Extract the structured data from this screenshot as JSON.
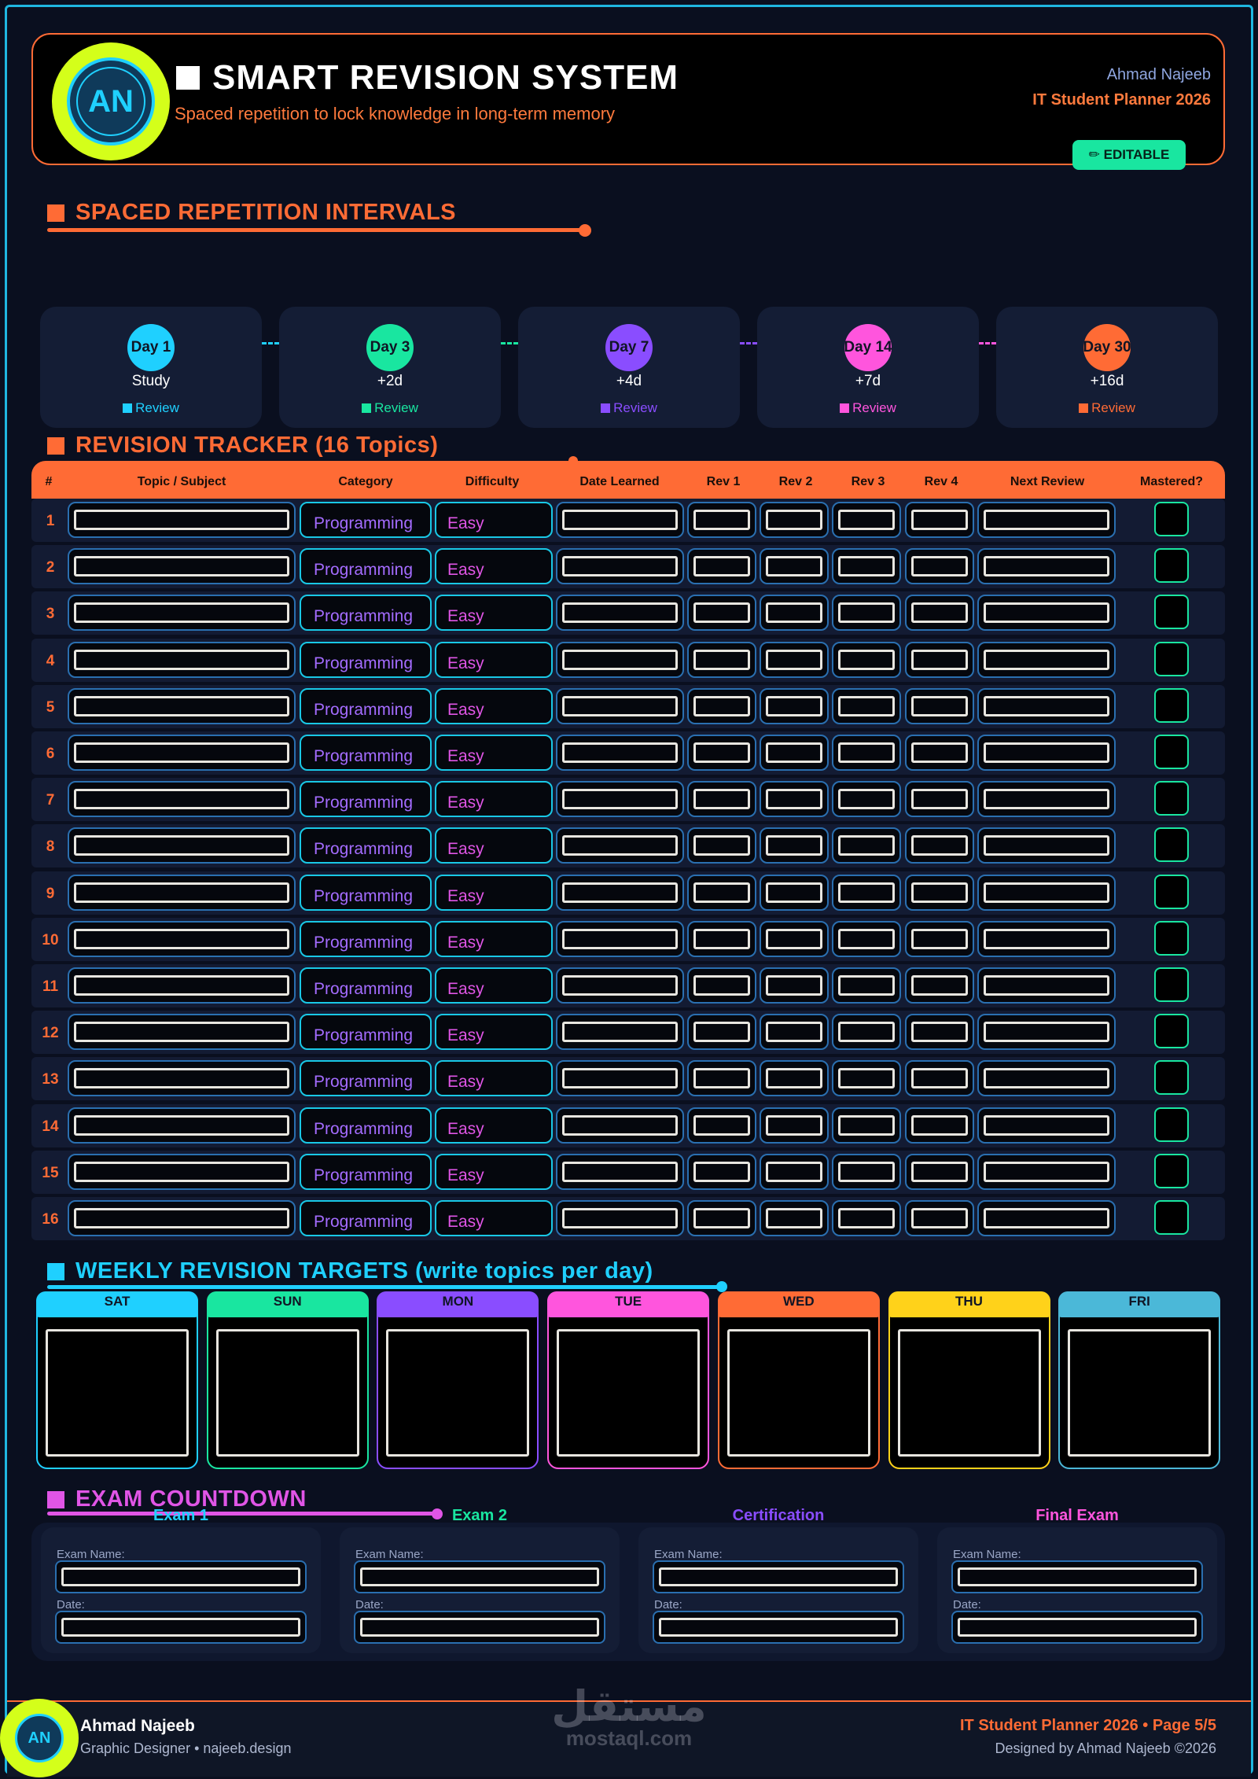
{
  "header": {
    "logo_initials": "AN",
    "title": "SMART REVISION SYSTEM",
    "subtitle": "Spaced repetition to lock knowledge in long-term memory",
    "author": "Ahmad Najeeb",
    "planner": "IT Student Planner 2026",
    "editable_label": "✏ EDITABLE"
  },
  "intervals": {
    "title": "SPACED REPETITION INTERVALS",
    "items": [
      {
        "day": "Day 1",
        "sub": "Study",
        "review": "Review",
        "color": "#1fd0ff"
      },
      {
        "day": "Day 3",
        "sub": "+2d",
        "review": "Review",
        "color": "#19e6a0"
      },
      {
        "day": "Day 7",
        "sub": "+4d",
        "review": "Review",
        "color": "#8a4dff"
      },
      {
        "day": "Day 14",
        "sub": "+7d",
        "review": "Review",
        "color": "#ff55dd"
      },
      {
        "day": "Day 30",
        "sub": "+16d",
        "review": "Review",
        "color": "#ff6b35"
      }
    ]
  },
  "tracker": {
    "title": "REVISION TRACKER  (16 Topics)",
    "columns": [
      "#",
      "Topic / Subject",
      "Category",
      "Difficulty",
      "Date Learned",
      "Rev 1",
      "Rev 2",
      "Rev 3",
      "Rev 4",
      "Next Review",
      "Mastered?"
    ],
    "rows": [
      {
        "num": "1",
        "category": "Programming",
        "difficulty": "Easy"
      },
      {
        "num": "2",
        "category": "Programming",
        "difficulty": "Easy"
      },
      {
        "num": "3",
        "category": "Programming",
        "difficulty": "Easy"
      },
      {
        "num": "4",
        "category": "Programming",
        "difficulty": "Easy"
      },
      {
        "num": "5",
        "category": "Programming",
        "difficulty": "Easy"
      },
      {
        "num": "6",
        "category": "Programming",
        "difficulty": "Easy"
      },
      {
        "num": "7",
        "category": "Programming",
        "difficulty": "Easy"
      },
      {
        "num": "8",
        "category": "Programming",
        "difficulty": "Easy"
      },
      {
        "num": "9",
        "category": "Programming",
        "difficulty": "Easy"
      },
      {
        "num": "10",
        "category": "Programming",
        "difficulty": "Easy"
      },
      {
        "num": "11",
        "category": "Programming",
        "difficulty": "Easy"
      },
      {
        "num": "12",
        "category": "Programming",
        "difficulty": "Easy"
      },
      {
        "num": "13",
        "category": "Programming",
        "difficulty": "Easy"
      },
      {
        "num": "14",
        "category": "Programming",
        "difficulty": "Easy"
      },
      {
        "num": "15",
        "category": "Programming",
        "difficulty": "Easy"
      },
      {
        "num": "16",
        "category": "Programming",
        "difficulty": "Easy"
      }
    ]
  },
  "weekly": {
    "title": "WEEKLY REVISION TARGETS  (write topics per day)",
    "days": [
      {
        "name": "SAT",
        "color": "#1fd0ff"
      },
      {
        "name": "SUN",
        "color": "#19e6a0"
      },
      {
        "name": "MON",
        "color": "#8a4dff"
      },
      {
        "name": "TUE",
        "color": "#ff55dd"
      },
      {
        "name": "WED",
        "color": "#ff6b35"
      },
      {
        "name": "THU",
        "color": "#ffd21a"
      },
      {
        "name": "FRI",
        "color": "#4bb8d8"
      }
    ]
  },
  "exam": {
    "title": "EXAM COUNTDOWN",
    "items": [
      {
        "label": "Exam 1",
        "color": "#1fd0ff",
        "name_label": "Exam Name:",
        "date_label": "Date:"
      },
      {
        "label": "Exam 2",
        "color": "#19e6a0",
        "name_label": "Exam Name:",
        "date_label": "Date:"
      },
      {
        "label": "Certification",
        "color": "#8a4dff",
        "name_label": "Exam Name:",
        "date_label": "Date:"
      },
      {
        "label": "Final Exam",
        "color": "#ff55dd",
        "name_label": "Exam Name:",
        "date_label": "Date:"
      }
    ]
  },
  "footer": {
    "logo_initials": "AN",
    "name": "Ahmad Najeeb",
    "role": "Graphic Designer  •  najeeb.design",
    "planner": "IT Student Planner 2026  •  Page 5/5",
    "credit": "Designed by Ahmad Najeeb  ©2026",
    "watermark_ar": "مستقل",
    "watermark_en": "mostaql.com"
  },
  "colors": {
    "accent_orange": "#ff6b35",
    "accent_cyan": "#1fd0ff",
    "accent_green": "#19e6a0",
    "accent_purple": "#8a4dff",
    "accent_pink": "#ff55dd",
    "logo_lime": "#d4ff1a",
    "background": "#0a0f1f"
  }
}
